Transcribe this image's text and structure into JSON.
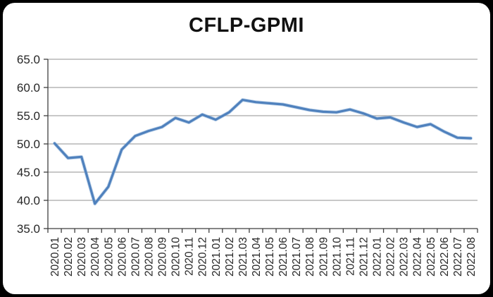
{
  "window": {
    "frame_color": "#000000",
    "panel_color": "#ffffff"
  },
  "chart_data": {
    "type": "line",
    "title": "CFLP-GPMI",
    "categories": [
      "2020.01",
      "2020.02",
      "2020.03",
      "2020.04",
      "2020.05",
      "2020.06",
      "2020.07",
      "2020.08",
      "2020.09",
      "2020.10",
      "2020.11",
      "2020.12",
      "2021.01",
      "2021.02",
      "2021.03",
      "2021.04",
      "2021.05",
      "2021.06",
      "2021.07",
      "2021.08",
      "2021.09",
      "2021.10",
      "2021.11",
      "2021.12",
      "2022.01",
      "2022.02",
      "2022.03",
      "2022.04",
      "2022.05",
      "2022.06",
      "2022.07",
      "2022.08"
    ],
    "series": [
      {
        "name": "CFLP-GPMI",
        "color": "#4f81bd",
        "edge_color": "#8db0d9",
        "values": [
          50.1,
          47.5,
          47.7,
          39.4,
          42.4,
          49.0,
          51.4,
          52.3,
          53.0,
          54.6,
          53.8,
          55.2,
          54.3,
          55.6,
          57.8,
          57.4,
          57.2,
          57.0,
          56.5,
          56.0,
          55.7,
          55.6,
          56.1,
          55.4,
          54.5,
          54.7,
          53.8,
          53.0,
          53.5,
          52.2,
          51.1,
          51.0
        ]
      }
    ],
    "xlabel": "",
    "ylabel": "",
    "ylim": [
      35.0,
      65.0
    ],
    "ytick_step": 5.0,
    "ytick_labels": [
      "35.0",
      "40.0",
      "45.0",
      "50.0",
      "55.0",
      "60.0",
      "65.0"
    ],
    "grid": true,
    "legend_position": "none",
    "grid_color": "#919191",
    "axis_color": "#3f3f3f"
  }
}
